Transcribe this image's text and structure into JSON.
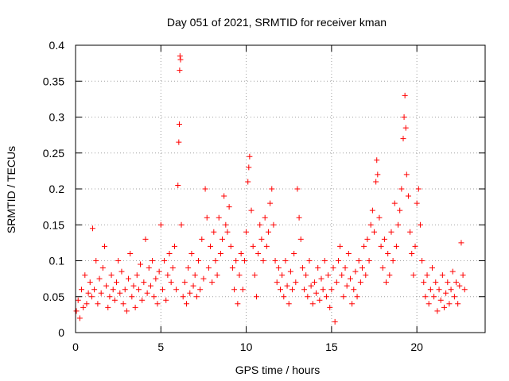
{
  "chart_data": {
    "type": "scatter",
    "title": "Day 051 of 2021, SRMTID for receiver kman",
    "xlabel": "GPS time / hours",
    "ylabel": "SRMTID / TECUs",
    "xlim": [
      0,
      24
    ],
    "ylim": [
      0,
      0.4
    ],
    "xticks": [
      {
        "value": 0,
        "label": "0"
      },
      {
        "value": 5,
        "label": "5"
      },
      {
        "value": 10,
        "label": "10"
      },
      {
        "value": 15,
        "label": "15"
      },
      {
        "value": 20,
        "label": "20"
      }
    ],
    "yticks": [
      {
        "value": 0,
        "label": "0"
      },
      {
        "value": 0.05,
        "label": "0.05"
      },
      {
        "value": 0.1,
        "label": "0.1"
      },
      {
        "value": 0.15,
        "label": "0.15"
      },
      {
        "value": 0.2,
        "label": "0.2"
      },
      {
        "value": 0.25,
        "label": "0.25"
      },
      {
        "value": 0.3,
        "label": "0.3"
      },
      {
        "value": 0.35,
        "label": "0.35"
      },
      {
        "value": 0.4,
        "label": "0.4"
      }
    ],
    "grid": true,
    "marker": "plus",
    "color": "#ff0000",
    "x_range_observed": [
      0,
      22.8
    ],
    "series": [
      {
        "name": "SRMTID",
        "points": [
          [
            0.05,
            0.03
          ],
          [
            0.15,
            0.045
          ],
          [
            0.25,
            0.02
          ],
          [
            0.35,
            0.06
          ],
          [
            0.45,
            0.035
          ],
          [
            0.55,
            0.08
          ],
          [
            0.65,
            0.04
          ],
          [
            0.75,
            0.055
          ],
          [
            0.85,
            0.07
          ],
          [
            0.95,
            0.05
          ],
          [
            1.0,
            0.145
          ],
          [
            1.1,
            0.06
          ],
          [
            1.2,
            0.1
          ],
          [
            1.3,
            0.04
          ],
          [
            1.4,
            0.075
          ],
          [
            1.5,
            0.055
          ],
          [
            1.6,
            0.09
          ],
          [
            1.7,
            0.12
          ],
          [
            1.8,
            0.065
          ],
          [
            1.9,
            0.035
          ],
          [
            2.0,
            0.05
          ],
          [
            2.1,
            0.08
          ],
          [
            2.2,
            0.06
          ],
          [
            2.3,
            0.045
          ],
          [
            2.4,
            0.07
          ],
          [
            2.5,
            0.1
          ],
          [
            2.6,
            0.055
          ],
          [
            2.7,
            0.085
          ],
          [
            2.8,
            0.04
          ],
          [
            2.9,
            0.06
          ],
          [
            3.0,
            0.03
          ],
          [
            3.1,
            0.075
          ],
          [
            3.2,
            0.11
          ],
          [
            3.3,
            0.05
          ],
          [
            3.4,
            0.065
          ],
          [
            3.5,
            0.035
          ],
          [
            3.6,
            0.08
          ],
          [
            3.7,
            0.06
          ],
          [
            3.8,
            0.095
          ],
          [
            3.9,
            0.045
          ],
          [
            4.0,
            0.07
          ],
          [
            4.1,
            0.13
          ],
          [
            4.2,
            0.055
          ],
          [
            4.3,
            0.09
          ],
          [
            4.4,
            0.065
          ],
          [
            4.5,
            0.1
          ],
          [
            4.6,
            0.05
          ],
          [
            4.7,
            0.075
          ],
          [
            4.8,
            0.04
          ],
          [
            4.9,
            0.085
          ],
          [
            5.0,
            0.15
          ],
          [
            5.1,
            0.06
          ],
          [
            5.2,
            0.1
          ],
          [
            5.3,
            0.045
          ],
          [
            5.4,
            0.08
          ],
          [
            5.5,
            0.11
          ],
          [
            5.6,
            0.07
          ],
          [
            5.7,
            0.09
          ],
          [
            5.8,
            0.12
          ],
          [
            5.9,
            0.06
          ],
          [
            6.0,
            0.205
          ],
          [
            6.05,
            0.265
          ],
          [
            6.08,
            0.29
          ],
          [
            6.1,
            0.365
          ],
          [
            6.12,
            0.385
          ],
          [
            6.15,
            0.38
          ],
          [
            6.2,
            0.15
          ],
          [
            6.3,
            0.05
          ],
          [
            6.4,
            0.07
          ],
          [
            6.5,
            0.04
          ],
          [
            6.6,
            0.09
          ],
          [
            6.7,
            0.055
          ],
          [
            6.8,
            0.11
          ],
          [
            6.9,
            0.065
          ],
          [
            7.0,
            0.08
          ],
          [
            7.1,
            0.05
          ],
          [
            7.2,
            0.1
          ],
          [
            7.3,
            0.06
          ],
          [
            7.4,
            0.13
          ],
          [
            7.5,
            0.075
          ],
          [
            7.6,
            0.2
          ],
          [
            7.7,
            0.16
          ],
          [
            7.8,
            0.09
          ],
          [
            7.9,
            0.12
          ],
          [
            8.0,
            0.07
          ],
          [
            8.1,
            0.14
          ],
          [
            8.2,
            0.1
          ],
          [
            8.3,
            0.08
          ],
          [
            8.4,
            0.16
          ],
          [
            8.5,
            0.11
          ],
          [
            8.6,
            0.13
          ],
          [
            8.7,
            0.19
          ],
          [
            8.8,
            0.15
          ],
          [
            8.9,
            0.14
          ],
          [
            9.0,
            0.175
          ],
          [
            9.1,
            0.12
          ],
          [
            9.2,
            0.09
          ],
          [
            9.3,
            0.06
          ],
          [
            9.4,
            0.1
          ],
          [
            9.5,
            0.04
          ],
          [
            9.6,
            0.08
          ],
          [
            9.7,
            0.11
          ],
          [
            9.8,
            0.06
          ],
          [
            9.9,
            0.1
          ],
          [
            10.0,
            0.14
          ],
          [
            10.1,
            0.21
          ],
          [
            10.15,
            0.23
          ],
          [
            10.2,
            0.245
          ],
          [
            10.3,
            0.17
          ],
          [
            10.4,
            0.12
          ],
          [
            10.5,
            0.08
          ],
          [
            10.6,
            0.05
          ],
          [
            10.7,
            0.11
          ],
          [
            10.8,
            0.15
          ],
          [
            10.9,
            0.13
          ],
          [
            11.0,
            0.1
          ],
          [
            11.1,
            0.16
          ],
          [
            11.2,
            0.12
          ],
          [
            11.3,
            0.14
          ],
          [
            11.4,
            0.18
          ],
          [
            11.5,
            0.2
          ],
          [
            11.6,
            0.15
          ],
          [
            11.7,
            0.1
          ],
          [
            11.8,
            0.07
          ],
          [
            11.9,
            0.09
          ],
          [
            12.0,
            0.06
          ],
          [
            12.1,
            0.08
          ],
          [
            12.2,
            0.05
          ],
          [
            12.3,
            0.1
          ],
          [
            12.4,
            0.065
          ],
          [
            12.5,
            0.04
          ],
          [
            12.6,
            0.085
          ],
          [
            12.7,
            0.06
          ],
          [
            12.8,
            0.11
          ],
          [
            12.9,
            0.07
          ],
          [
            13.0,
            0.2
          ],
          [
            13.1,
            0.16
          ],
          [
            13.2,
            0.13
          ],
          [
            13.3,
            0.09
          ],
          [
            13.4,
            0.06
          ],
          [
            13.5,
            0.08
          ],
          [
            13.6,
            0.05
          ],
          [
            13.7,
            0.1
          ],
          [
            13.8,
            0.065
          ],
          [
            13.9,
            0.04
          ],
          [
            14.0,
            0.07
          ],
          [
            14.1,
            0.055
          ],
          [
            14.2,
            0.09
          ],
          [
            14.3,
            0.045
          ],
          [
            14.4,
            0.075
          ],
          [
            14.5,
            0.06
          ],
          [
            14.6,
            0.1
          ],
          [
            14.7,
            0.05
          ],
          [
            14.8,
            0.08
          ],
          [
            14.9,
            0.035
          ],
          [
            15.0,
            0.06
          ],
          [
            15.1,
            0.09
          ],
          [
            15.2,
            0.015
          ],
          [
            15.3,
            0.07
          ],
          [
            15.4,
            0.1
          ],
          [
            15.5,
            0.12
          ],
          [
            15.6,
            0.08
          ],
          [
            15.7,
            0.05
          ],
          [
            15.8,
            0.09
          ],
          [
            15.9,
            0.065
          ],
          [
            16.0,
            0.11
          ],
          [
            16.1,
            0.075
          ],
          [
            16.2,
            0.04
          ],
          [
            16.3,
            0.06
          ],
          [
            16.4,
            0.085
          ],
          [
            16.5,
            0.05
          ],
          [
            16.6,
            0.1
          ],
          [
            16.7,
            0.07
          ],
          [
            16.8,
            0.09
          ],
          [
            16.9,
            0.12
          ],
          [
            17.0,
            0.08
          ],
          [
            17.1,
            0.13
          ],
          [
            17.2,
            0.1
          ],
          [
            17.3,
            0.15
          ],
          [
            17.4,
            0.17
          ],
          [
            17.5,
            0.14
          ],
          [
            17.6,
            0.21
          ],
          [
            17.65,
            0.24
          ],
          [
            17.7,
            0.22
          ],
          [
            17.8,
            0.16
          ],
          [
            17.9,
            0.12
          ],
          [
            18.0,
            0.09
          ],
          [
            18.1,
            0.13
          ],
          [
            18.2,
            0.07
          ],
          [
            18.3,
            0.11
          ],
          [
            18.4,
            0.08
          ],
          [
            18.5,
            0.14
          ],
          [
            18.6,
            0.1
          ],
          [
            18.7,
            0.18
          ],
          [
            18.8,
            0.12
          ],
          [
            18.9,
            0.15
          ],
          [
            19.0,
            0.17
          ],
          [
            19.1,
            0.2
          ],
          [
            19.2,
            0.27
          ],
          [
            19.25,
            0.3
          ],
          [
            19.3,
            0.33
          ],
          [
            19.35,
            0.285
          ],
          [
            19.4,
            0.22
          ],
          [
            19.5,
            0.19
          ],
          [
            19.6,
            0.14
          ],
          [
            19.7,
            0.11
          ],
          [
            19.8,
            0.08
          ],
          [
            19.9,
            0.12
          ],
          [
            20.0,
            0.18
          ],
          [
            20.1,
            0.2
          ],
          [
            20.2,
            0.15
          ],
          [
            20.3,
            0.1
          ],
          [
            20.4,
            0.07
          ],
          [
            20.5,
            0.05
          ],
          [
            20.6,
            0.08
          ],
          [
            20.7,
            0.04
          ],
          [
            20.8,
            0.06
          ],
          [
            20.9,
            0.09
          ],
          [
            21.0,
            0.05
          ],
          [
            21.1,
            0.07
          ],
          [
            21.2,
            0.03
          ],
          [
            21.3,
            0.06
          ],
          [
            21.4,
            0.045
          ],
          [
            21.5,
            0.08
          ],
          [
            21.6,
            0.035
          ],
          [
            21.7,
            0.055
          ],
          [
            21.8,
            0.07
          ],
          [
            21.9,
            0.04
          ],
          [
            22.0,
            0.06
          ],
          [
            22.1,
            0.085
          ],
          [
            22.2,
            0.05
          ],
          [
            22.3,
            0.07
          ],
          [
            22.4,
            0.04
          ],
          [
            22.5,
            0.065
          ],
          [
            22.6,
            0.125
          ],
          [
            22.7,
            0.08
          ],
          [
            22.8,
            0.06
          ]
        ]
      }
    ]
  }
}
